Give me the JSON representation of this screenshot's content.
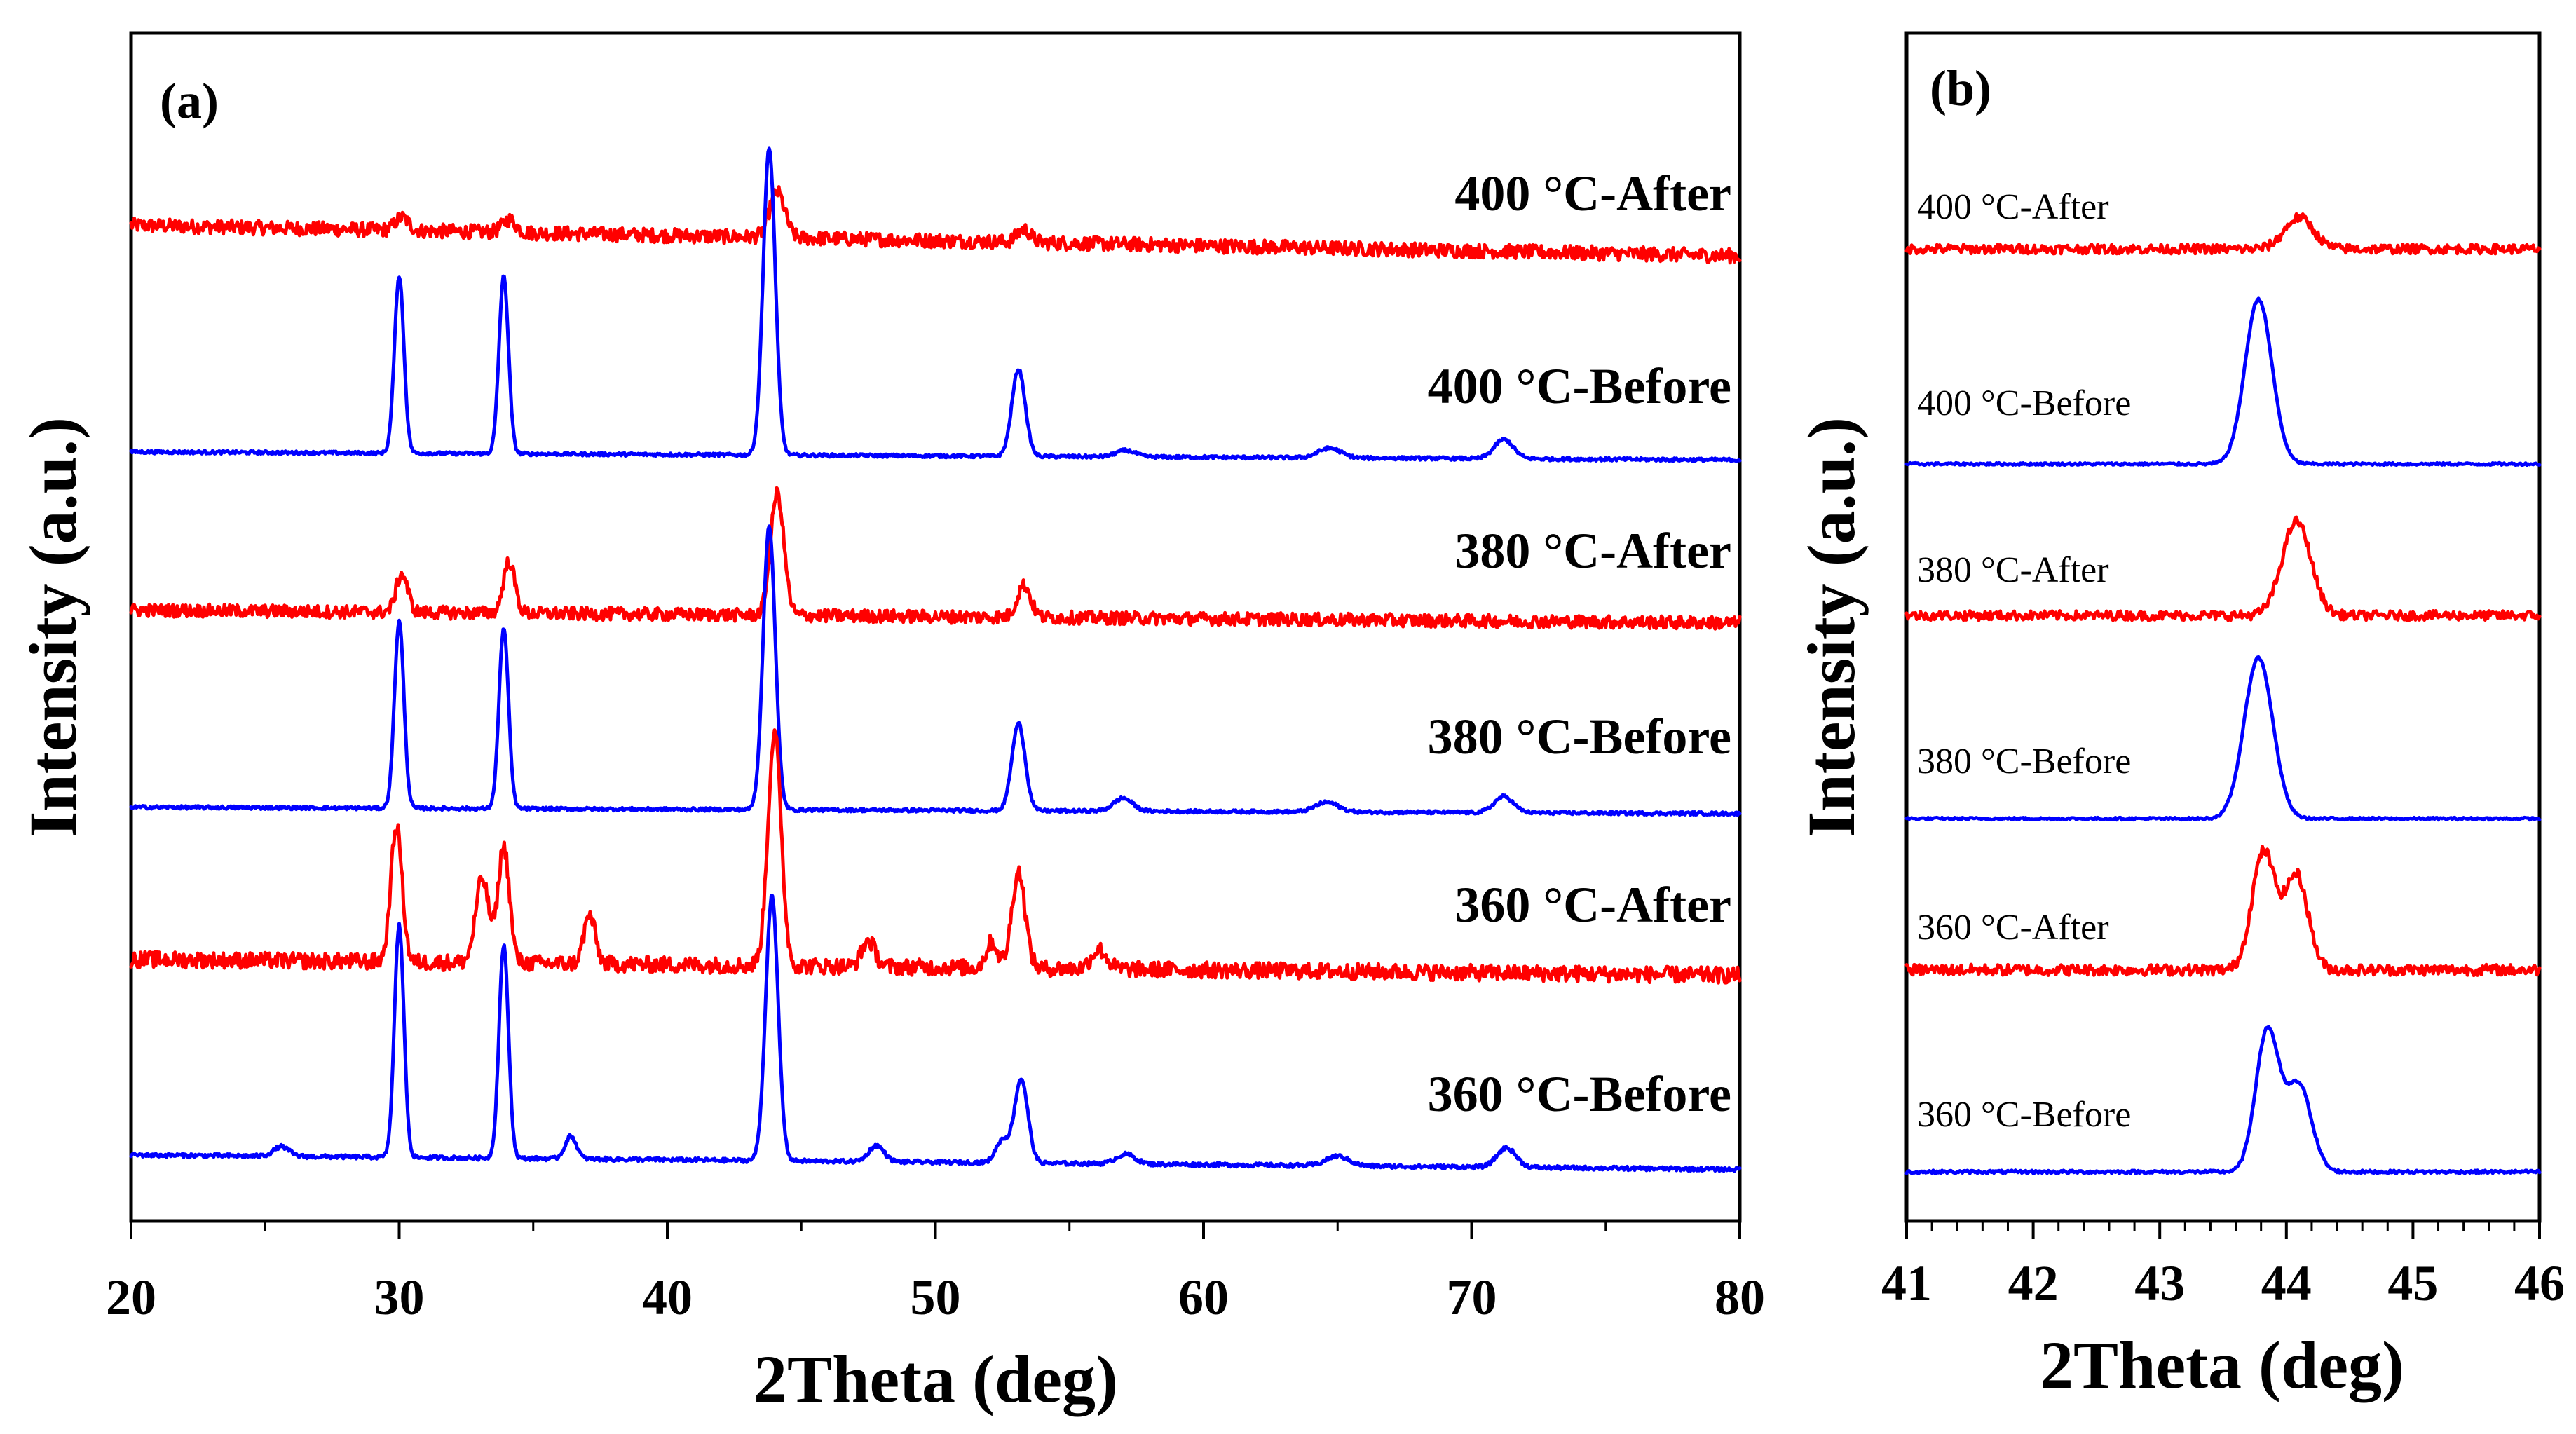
{
  "colors": {
    "after": "#ff0000",
    "before": "#0000ff"
  },
  "chart_data": [
    {
      "type": "line",
      "panel_label": "(a)",
      "xlabel": "2Theta (deg)",
      "ylabel": "Intensity (a.u.)",
      "xlim": [
        20,
        80
      ],
      "xticks": [
        "20",
        "30",
        "40",
        "50",
        "60",
        "70",
        "80"
      ],
      "yticks": [],
      "series": [
        {
          "name": "400 °C-After",
          "color": "after",
          "baseline_start": 0.16,
          "baseline_end": 0.065,
          "noise": 0.022,
          "peaks": [
            [
              30.1,
              0.04,
              0.35
            ],
            [
              34.1,
              0.04,
              0.35
            ],
            [
              44.1,
              0.14,
              0.4
            ],
            [
              53.3,
              0.04,
              0.35
            ]
          ]
        },
        {
          "name": "400 °C-Before",
          "color": "before",
          "baseline_start": 0.055,
          "baseline_end": 0.03,
          "noise": 0.005,
          "peaks": [
            [
              30.0,
              0.55,
              0.25
            ],
            [
              33.9,
              0.55,
              0.25
            ],
            [
              43.8,
              0.95,
              0.32
            ],
            [
              53.1,
              0.27,
              0.35
            ],
            [
              57.1,
              0.02,
              0.5
            ],
            [
              64.7,
              0.03,
              0.6
            ],
            [
              71.2,
              0.06,
              0.5
            ]
          ]
        },
        {
          "name": "380 °C-After",
          "color": "after",
          "baseline_start": 0.075,
          "baseline_end": 0.035,
          "noise": 0.02,
          "peaks": [
            [
              30.1,
              0.12,
              0.3
            ],
            [
              34.1,
              0.16,
              0.3
            ],
            [
              44.1,
              0.38,
              0.35
            ],
            [
              53.3,
              0.1,
              0.35
            ]
          ]
        },
        {
          "name": "380 °C-Before",
          "color": "before",
          "baseline_start": 0.04,
          "baseline_end": 0.02,
          "noise": 0.005,
          "peaks": [
            [
              30.0,
              0.58,
              0.25
            ],
            [
              33.9,
              0.56,
              0.25
            ],
            [
              43.8,
              0.88,
              0.32
            ],
            [
              53.1,
              0.27,
              0.35
            ],
            [
              57.0,
              0.04,
              0.5
            ],
            [
              64.6,
              0.03,
              0.6
            ],
            [
              71.2,
              0.05,
              0.5
            ]
          ]
        },
        {
          "name": "360 °C-After",
          "color": "after",
          "baseline_start": 0.09,
          "baseline_end": 0.04,
          "noise": 0.025,
          "peaks": [
            [
              29.9,
              0.42,
              0.3
            ],
            [
              33.1,
              0.26,
              0.35
            ],
            [
              33.9,
              0.36,
              0.3
            ],
            [
              37.1,
              0.15,
              0.3
            ],
            [
              44.0,
              0.72,
              0.35
            ],
            [
              47.5,
              0.08,
              0.35
            ],
            [
              52.1,
              0.08,
              0.3
            ],
            [
              53.1,
              0.3,
              0.35
            ],
            [
              56.1,
              0.06,
              0.4
            ]
          ]
        },
        {
          "name": "360 °C-Before",
          "color": "before",
          "baseline_start": 0.07,
          "baseline_end": 0.025,
          "noise": 0.006,
          "peaks": [
            [
              25.6,
              0.03,
              0.4
            ],
            [
              30.0,
              0.72,
              0.25
            ],
            [
              33.9,
              0.66,
              0.25
            ],
            [
              36.4,
              0.07,
              0.3
            ],
            [
              43.9,
              0.82,
              0.33
            ],
            [
              47.8,
              0.05,
              0.4
            ],
            [
              52.5,
              0.07,
              0.35
            ],
            [
              53.2,
              0.26,
              0.35
            ],
            [
              57.1,
              0.03,
              0.5
            ],
            [
              65.0,
              0.03,
              0.6
            ],
            [
              71.3,
              0.06,
              0.5
            ]
          ]
        }
      ]
    },
    {
      "type": "line",
      "panel_label": "(b)",
      "xlabel": "2Theta (deg)",
      "ylabel": "Intensity (a.u.)",
      "xlim": [
        41,
        46
      ],
      "xticks": [
        "41",
        "42",
        "43",
        "44",
        "45",
        "46"
      ],
      "yticks": [],
      "series": [
        {
          "name": "400 °C-After",
          "color": "after",
          "baseline_start": 0.03,
          "baseline_end": 0.03,
          "noise": 0.012,
          "peaks": [
            [
              44.1,
              0.08,
              0.16
            ]
          ]
        },
        {
          "name": "400 °C-Before",
          "color": "before",
          "baseline_start": 0.0,
          "baseline_end": 0.0,
          "noise": 0.003,
          "peaks": [
            [
              43.78,
              0.42,
              0.15
            ]
          ]
        },
        {
          "name": "380 °C-After",
          "color": "after",
          "baseline_start": 0.03,
          "baseline_end": 0.03,
          "noise": 0.012,
          "peaks": [
            [
              44.08,
              0.24,
              0.16
            ]
          ]
        },
        {
          "name": "380 °C-Before",
          "color": "before",
          "baseline_start": 0.0,
          "baseline_end": 0.0,
          "noise": 0.003,
          "peaks": [
            [
              43.78,
              0.41,
              0.16
            ]
          ]
        },
        {
          "name": "360 °C-After",
          "color": "after",
          "baseline_start": 0.02,
          "baseline_end": 0.02,
          "noise": 0.014,
          "peaks": [
            [
              43.82,
              0.3,
              0.13
            ],
            [
              44.08,
              0.24,
              0.13
            ]
          ]
        },
        {
          "name": "360 °C-Before",
          "color": "before",
          "baseline_start": 0.0,
          "baseline_end": 0.0,
          "noise": 0.004,
          "peaks": [
            [
              43.85,
              0.36,
              0.13
            ],
            [
              44.1,
              0.22,
              0.14
            ]
          ]
        }
      ]
    }
  ]
}
